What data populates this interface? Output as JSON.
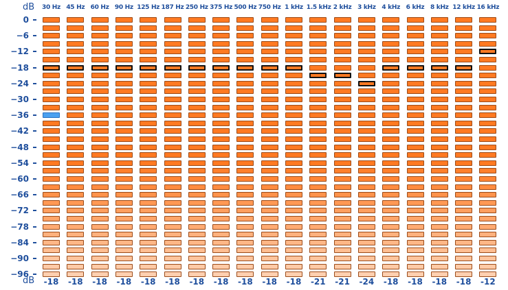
{
  "axis": {
    "unit_top": "dB",
    "unit_bottom": "dB",
    "ticks": [
      "0",
      "−6",
      "−12",
      "−18",
      "−24",
      "−30",
      "−36",
      "−42",
      "−48",
      "−54",
      "−60",
      "−66",
      "−72",
      "−78",
      "−84",
      "−90",
      "−96"
    ]
  },
  "bands": [
    {
      "label": "30 Hz",
      "value": "-18",
      "peak_db": -18,
      "active_db": -36
    },
    {
      "label": "45 Hz",
      "value": "-18",
      "peak_db": -18
    },
    {
      "label": "60 Hz",
      "value": "-18",
      "peak_db": -18
    },
    {
      "label": "90 Hz",
      "value": "-18",
      "peak_db": -18
    },
    {
      "label": "125 Hz",
      "value": "-18",
      "peak_db": -18
    },
    {
      "label": "187 Hz",
      "value": "-18",
      "peak_db": -18
    },
    {
      "label": "250 Hz",
      "value": "-18",
      "peak_db": -18
    },
    {
      "label": "375 Hz",
      "value": "-18",
      "peak_db": -18
    },
    {
      "label": "500 Hz",
      "value": "-18",
      "peak_db": -18
    },
    {
      "label": "750 Hz",
      "value": "-18",
      "peak_db": -18
    },
    {
      "label": "1 kHz",
      "value": "-18",
      "peak_db": -18
    },
    {
      "label": "1.5 kHz",
      "value": "-21",
      "peak_db": -21
    },
    {
      "label": "2 kHz",
      "value": "-21",
      "peak_db": -21
    },
    {
      "label": "3 kHz",
      "value": "-24",
      "peak_db": -24
    },
    {
      "label": "4 kHz",
      "value": "-18",
      "peak_db": -18
    },
    {
      "label": "6 kHz",
      "value": "-18",
      "peak_db": -18
    },
    {
      "label": "8 kHz",
      "value": "-18",
      "peak_db": -18
    },
    {
      "label": "12 kHz",
      "value": "-18",
      "peak_db": -18
    },
    {
      "label": "16 kHz",
      "value": "-12",
      "peak_db": -12
    }
  ],
  "colors": {
    "segment_bright": "#ff7a22",
    "segment_faded": "#ffd0b0",
    "active": "#4aa0f0",
    "text": "#1e4e9c"
  }
}
